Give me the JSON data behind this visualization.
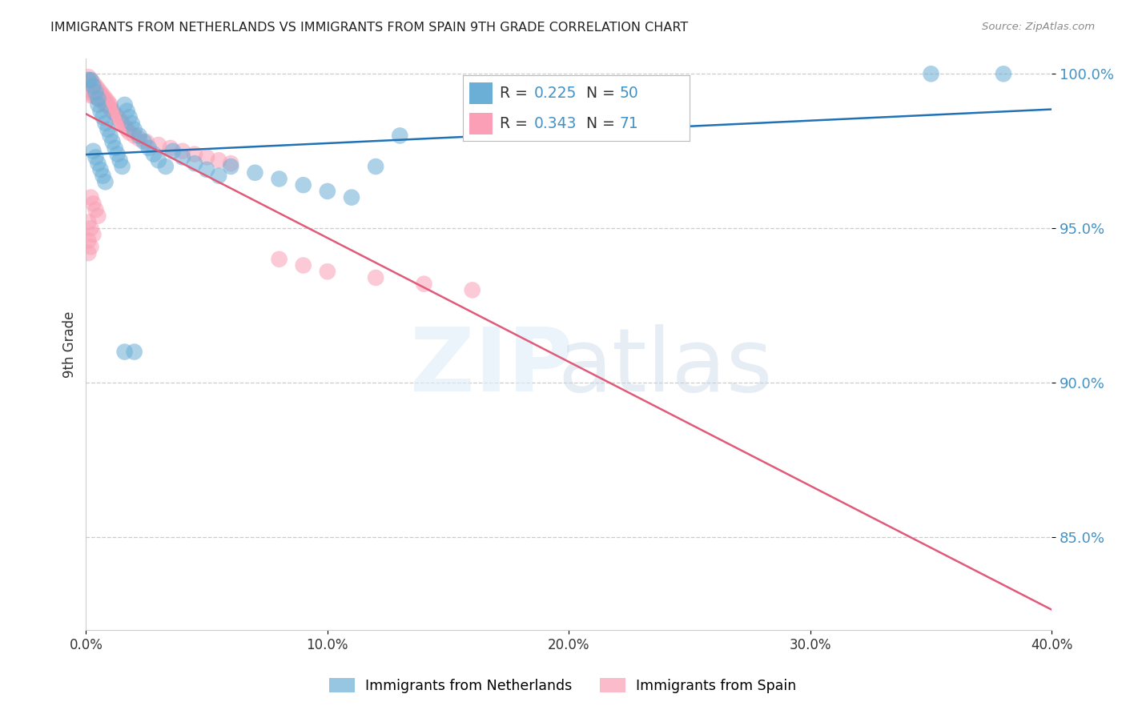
{
  "title": "IMMIGRANTS FROM NETHERLANDS VS IMMIGRANTS FROM SPAIN 9TH GRADE CORRELATION CHART",
  "source": "Source: ZipAtlas.com",
  "ylabel": "9th Grade",
  "xlim": [
    0.0,
    0.4
  ],
  "ylim": [
    0.82,
    1.005
  ],
  "ytick_values": [
    0.85,
    0.9,
    0.95,
    1.0
  ],
  "xtick_values": [
    0.0,
    0.1,
    0.2,
    0.3,
    0.4
  ],
  "netherlands_R": 0.225,
  "netherlands_N": 50,
  "spain_R": 0.343,
  "spain_N": 71,
  "netherlands_color": "#6baed6",
  "spain_color": "#fa9fb5",
  "netherlands_line_color": "#2171b5",
  "spain_line_color": "#e05a7a",
  "legend_label_netherlands": "Immigrants from Netherlands",
  "legend_label_spain": "Immigrants from Spain",
  "netherlands_x": [
    0.001,
    0.002,
    0.003,
    0.004,
    0.005,
    0.005,
    0.006,
    0.007,
    0.008,
    0.009,
    0.01,
    0.011,
    0.012,
    0.013,
    0.014,
    0.015,
    0.016,
    0.017,
    0.018,
    0.019,
    0.02,
    0.022,
    0.024,
    0.026,
    0.028,
    0.03,
    0.033,
    0.036,
    0.04,
    0.045,
    0.05,
    0.055,
    0.06,
    0.07,
    0.08,
    0.09,
    0.1,
    0.11,
    0.12,
    0.13,
    0.003,
    0.004,
    0.005,
    0.006,
    0.007,
    0.008,
    0.016,
    0.02,
    0.35,
    0.38
  ],
  "netherlands_y": [
    0.998,
    0.998,
    0.996,
    0.994,
    0.992,
    0.99,
    0.988,
    0.986,
    0.984,
    0.982,
    0.98,
    0.978,
    0.976,
    0.974,
    0.972,
    0.97,
    0.99,
    0.988,
    0.986,
    0.984,
    0.982,
    0.98,
    0.978,
    0.976,
    0.974,
    0.972,
    0.97,
    0.975,
    0.973,
    0.971,
    0.969,
    0.967,
    0.97,
    0.968,
    0.966,
    0.964,
    0.962,
    0.96,
    0.97,
    0.98,
    0.975,
    0.973,
    0.971,
    0.969,
    0.967,
    0.965,
    0.91,
    0.91,
    1.0,
    1.0
  ],
  "spain_x": [
    0.001,
    0.001,
    0.001,
    0.001,
    0.001,
    0.002,
    0.002,
    0.002,
    0.002,
    0.002,
    0.002,
    0.003,
    0.003,
    0.003,
    0.003,
    0.003,
    0.004,
    0.004,
    0.004,
    0.004,
    0.005,
    0.005,
    0.005,
    0.005,
    0.006,
    0.006,
    0.006,
    0.007,
    0.007,
    0.007,
    0.008,
    0.008,
    0.008,
    0.009,
    0.009,
    0.01,
    0.01,
    0.011,
    0.012,
    0.013,
    0.014,
    0.015,
    0.016,
    0.017,
    0.018,
    0.02,
    0.022,
    0.025,
    0.03,
    0.035,
    0.04,
    0.045,
    0.05,
    0.055,
    0.06,
    0.002,
    0.003,
    0.004,
    0.005,
    0.001,
    0.002,
    0.003,
    0.001,
    0.002,
    0.001,
    0.08,
    0.09,
    0.1,
    0.12,
    0.14,
    0.16
  ],
  "spain_y": [
    0.999,
    0.998,
    0.997,
    0.996,
    0.995,
    0.998,
    0.997,
    0.996,
    0.995,
    0.994,
    0.993,
    0.997,
    0.996,
    0.995,
    0.994,
    0.993,
    0.996,
    0.995,
    0.994,
    0.993,
    0.995,
    0.994,
    0.993,
    0.992,
    0.994,
    0.993,
    0.992,
    0.993,
    0.992,
    0.991,
    0.992,
    0.991,
    0.99,
    0.991,
    0.99,
    0.99,
    0.989,
    0.988,
    0.987,
    0.986,
    0.985,
    0.984,
    0.983,
    0.982,
    0.981,
    0.98,
    0.979,
    0.978,
    0.977,
    0.976,
    0.975,
    0.974,
    0.973,
    0.972,
    0.971,
    0.96,
    0.958,
    0.956,
    0.954,
    0.952,
    0.95,
    0.948,
    0.946,
    0.944,
    0.942,
    0.94,
    0.938,
    0.936,
    0.934,
    0.932,
    0.93
  ]
}
